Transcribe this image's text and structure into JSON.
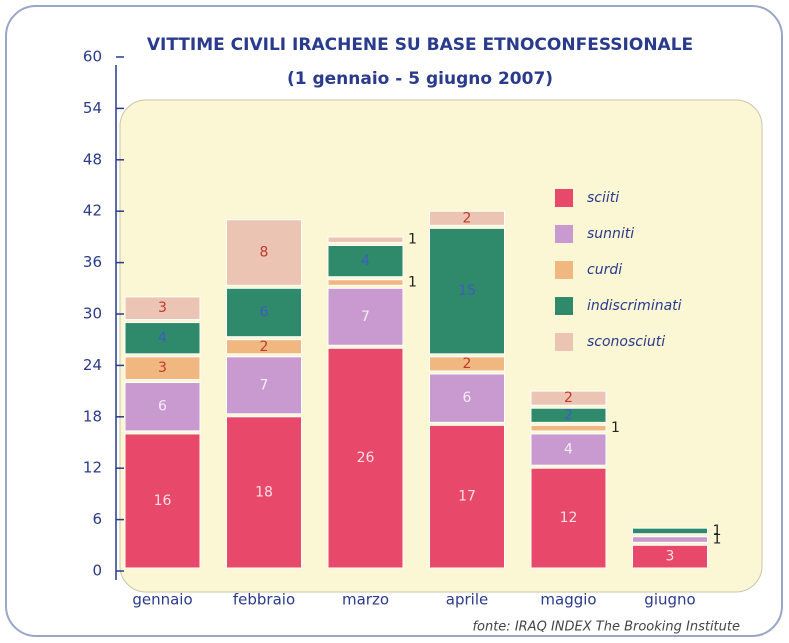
{
  "chart_data": {
    "type": "stacked_bar",
    "title": "VITTIME CIVILI IRACHENE SU BASE ETNOCONFESSIONALE",
    "subtitle": "(1 gennaio - 5 giugno 2007)",
    "source": "fonte: IRAQ INDEX The Brooking Institute",
    "categories": [
      "gennaio",
      "febbraio",
      "marzo",
      "aprile",
      "maggio",
      "giugno"
    ],
    "series": [
      {
        "name": "sciiti",
        "color": "#e8486a",
        "values": [
          16,
          18,
          26,
          17,
          12,
          3
        ]
      },
      {
        "name": "sunniti",
        "color": "#c99ad0",
        "values": [
          6,
          7,
          7,
          6,
          4,
          1
        ]
      },
      {
        "name": "curdi",
        "color": "#f0b880",
        "values": [
          3,
          2,
          1,
          2,
          1,
          null
        ]
      },
      {
        "name": "indiscriminati",
        "color": "#2e8a6a",
        "values": [
          4,
          6,
          4,
          15,
          2,
          1
        ]
      },
      {
        "name": "sconosciuti",
        "color": "#ecc4b4",
        "values": [
          3,
          8,
          1,
          2,
          2,
          null
        ]
      }
    ],
    "ylim": [
      0,
      60
    ],
    "yticks": [
      0,
      6,
      12,
      18,
      24,
      30,
      36,
      42,
      48,
      54,
      60
    ],
    "legend": "upper right"
  }
}
